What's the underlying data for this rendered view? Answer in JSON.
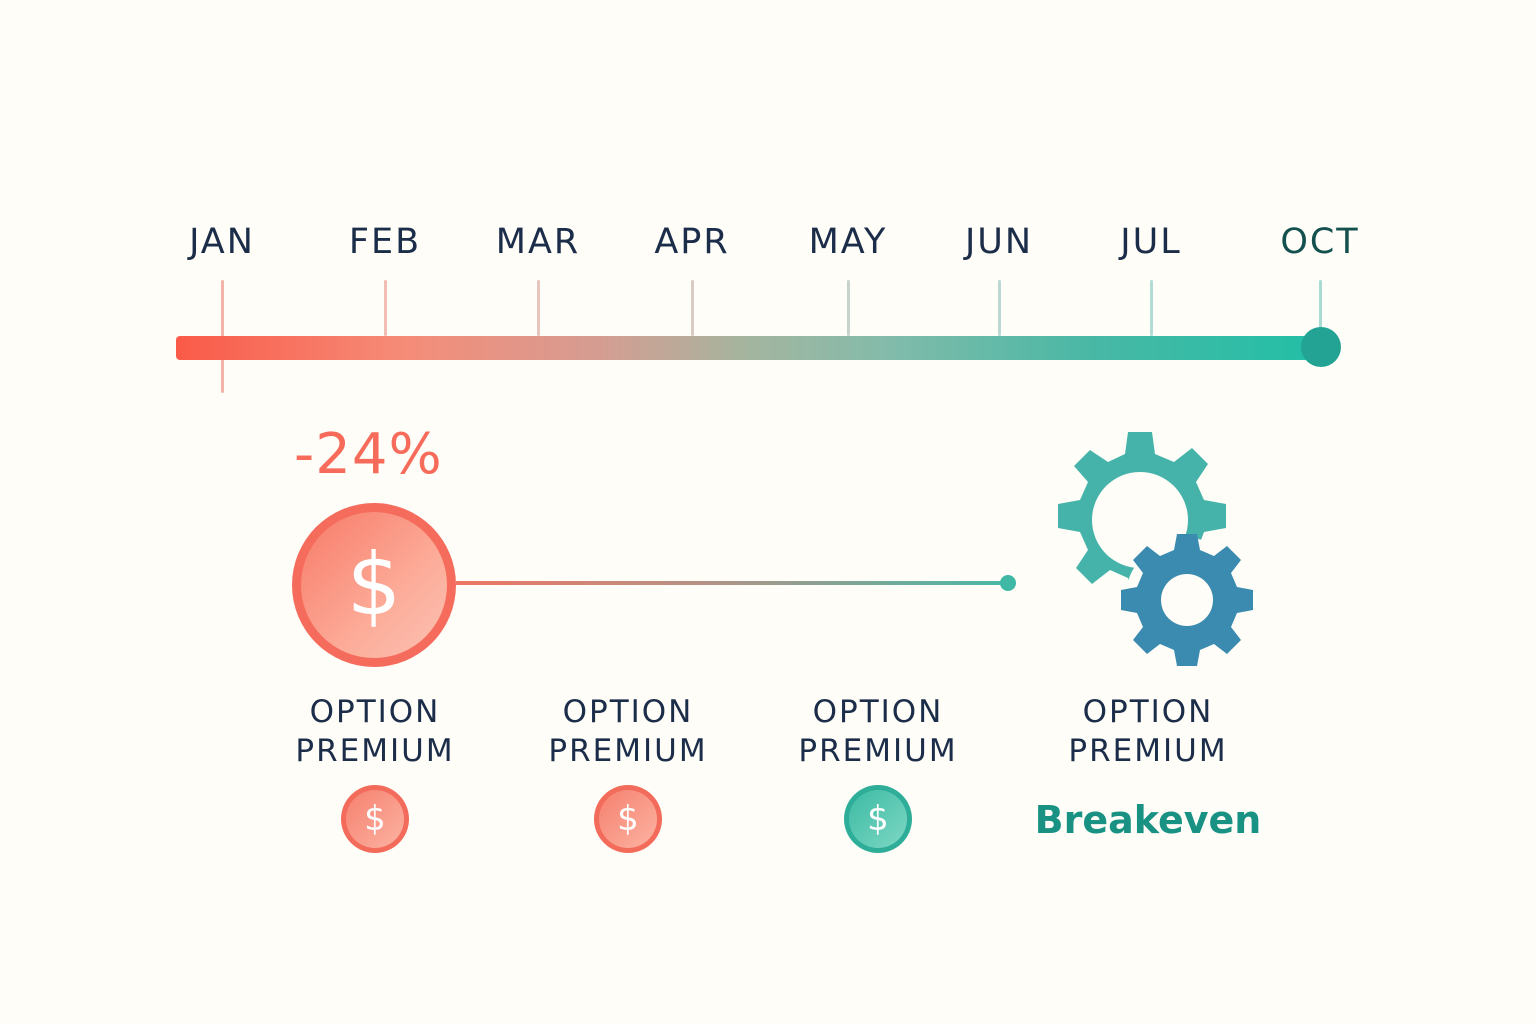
{
  "timeline": {
    "months": [
      "JAN",
      "FEB",
      "MAR",
      "APR",
      "MAY",
      "JUN",
      "JUL",
      "OCT"
    ],
    "gradient_start_color": "#fa5a48",
    "gradient_end_color": "#22bfa6"
  },
  "highlight": {
    "percent_label": "-24%",
    "coin_symbol": "$"
  },
  "gears_icon": "gears-icon",
  "stages": [
    {
      "label_line1": "OPTION",
      "label_line2": "PREMIUM",
      "coin_symbol": "$",
      "coin_color": "#f36b5b"
    },
    {
      "label_line1": "OPTION",
      "label_line2": "PREMIUM",
      "coin_symbol": "$",
      "coin_color": "#f36b5b"
    },
    {
      "label_line1": "OPTION",
      "label_line2": "PREMIUM",
      "coin_symbol": "$",
      "coin_color": "#2eae98"
    },
    {
      "label_line1": "OPTION",
      "label_line2": "PREMIUM",
      "status": "Breakeven"
    }
  ]
}
